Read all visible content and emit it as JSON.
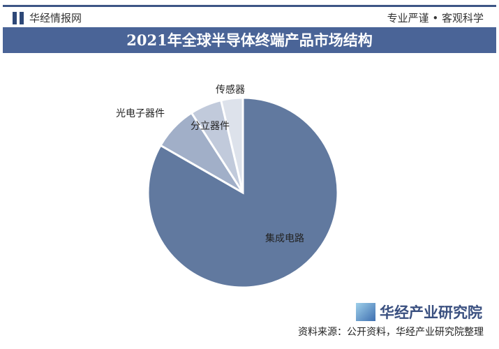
{
  "header": {
    "brand": "华经情报网",
    "slogan": "专业严谨 • 客观科学"
  },
  "chart_data": {
    "type": "pie",
    "title": "2021年全球半导体终端产品市场结构",
    "categories": [
      "集成电路",
      "光电子器件",
      "分立器件",
      "传感器"
    ],
    "values": [
      83.3,
      7.6,
      5.4,
      3.7
    ],
    "colors": [
      "#61799f",
      "#a1afc8",
      "#c1cadb",
      "#dde2eb"
    ]
  },
  "footer": {
    "logo": "华经产业研究院",
    "source": "资料来源：公开资料，华经产业研究院整理"
  }
}
